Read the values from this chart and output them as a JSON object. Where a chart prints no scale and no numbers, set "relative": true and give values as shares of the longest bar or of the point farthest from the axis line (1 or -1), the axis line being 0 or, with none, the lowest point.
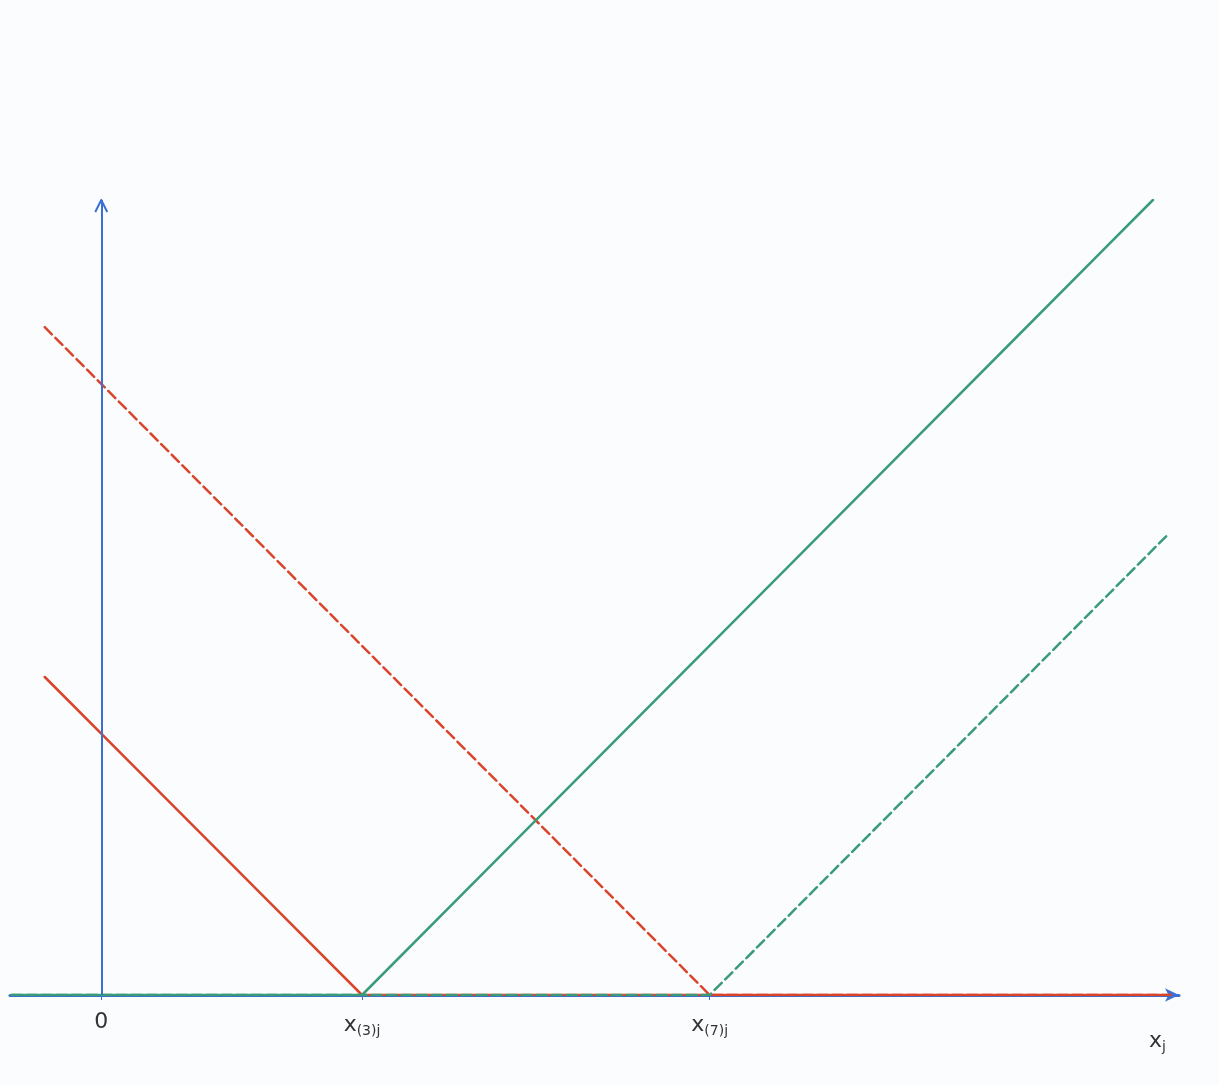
{
  "chart_data": {
    "type": "line",
    "relative": true,
    "xlabel": "x$_{j}$",
    "xlim": [
      -1.05,
      12.4
    ],
    "xticks": [
      {
        "value": 0,
        "label": "0"
      },
      {
        "value": 3,
        "label": "x$_{(3)j}$"
      },
      {
        "value": 7,
        "label": "x$_{(7)j}$"
      }
    ],
    "grid": false,
    "marker": "none",
    "ref_lines": [
      {
        "axis": "x",
        "value": 0,
        "color": "#3b6fd1"
      }
    ],
    "series": [
      {
        "color": "#d9452b",
        "line_style": "solid",
        "x": [
          -0.65,
          3,
          12.3
        ],
        "values": [
          0.4,
          0,
          0
        ]
      },
      {
        "color": "#d9452b",
        "line_style": "dashed",
        "x": [
          -0.65,
          7,
          12.3
        ],
        "values": [
          0.84,
          0,
          0
        ]
      },
      {
        "color": "#3a9b78",
        "line_style": "solid",
        "x": [
          -1.03,
          3,
          12.1
        ],
        "values": [
          0,
          0,
          1
        ]
      },
      {
        "color": "#3a9b78",
        "line_style": "dashed",
        "x": [
          -1.03,
          7,
          12.28
        ],
        "values": [
          0,
          0,
          0.58
        ]
      }
    ]
  }
}
